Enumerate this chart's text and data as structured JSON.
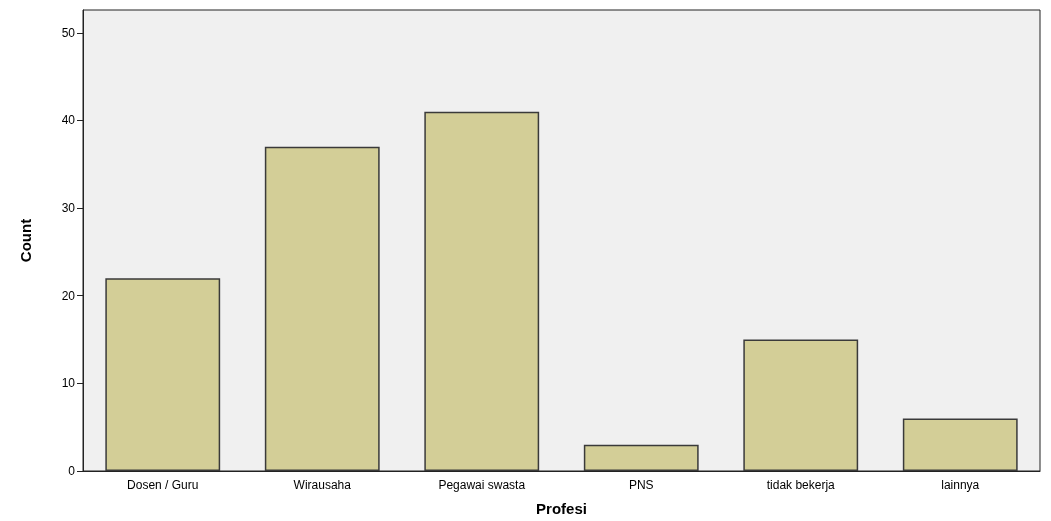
{
  "chart_data": {
    "type": "bar",
    "xlabel": "Profesi",
    "ylabel": "Count",
    "categories": [
      "Dosen / Guru",
      "Wirausaha",
      "Pegawai swasta",
      "PNS",
      "tidak bekerja",
      "lainnya"
    ],
    "values": [
      22,
      37,
      41,
      3,
      15,
      6
    ],
    "color": "#d3ce97",
    "ylim": [
      0,
      52.6
    ],
    "yticks": [
      0,
      10,
      20,
      30,
      40,
      50
    ],
    "grid": false
  }
}
